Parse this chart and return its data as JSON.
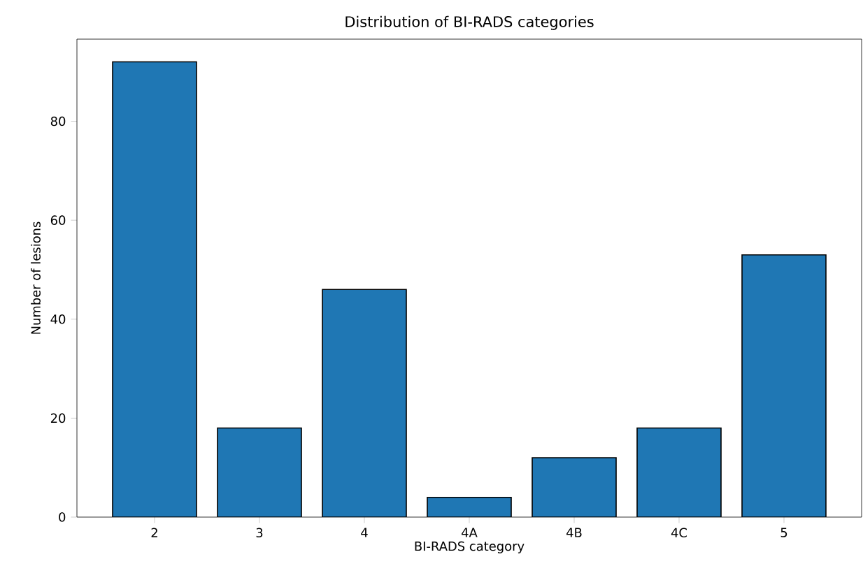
{
  "chart_data": {
    "type": "bar",
    "title": "Distribution of BI-RADS categories",
    "xlabel": "BI-RADS category",
    "ylabel": "Number of lesions",
    "categories": [
      "2",
      "3",
      "4",
      "4A",
      "4B",
      "4C",
      "5"
    ],
    "values": [
      92,
      18,
      46,
      4,
      12,
      18,
      53
    ],
    "color": "#1f77b4",
    "ylim": [
      0,
      96.6
    ],
    "yticks": [
      0,
      20,
      40,
      60,
      80
    ],
    "grid": false
  }
}
